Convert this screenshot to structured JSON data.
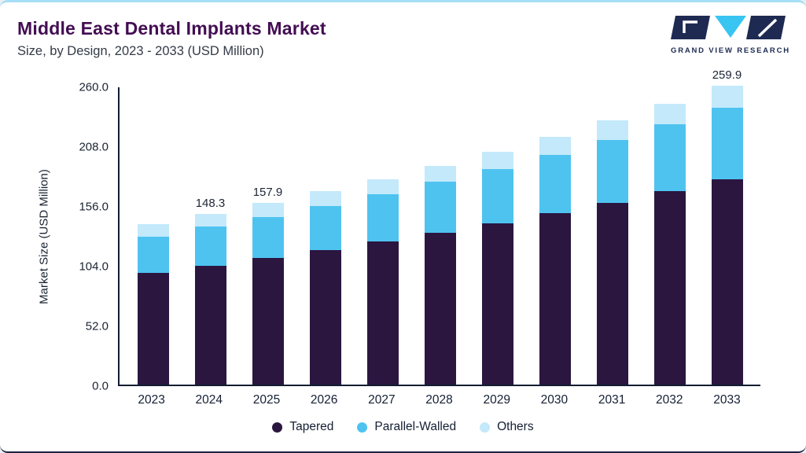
{
  "header": {
    "title": "Middle East Dental Implants Market",
    "subtitle": "Size, by Design, 2023 - 2033 (USD Million)",
    "logo_text": "GRAND VIEW RESEARCH"
  },
  "colors": {
    "accent_top": "#a6def6",
    "bottom_line": "#1c2440",
    "title": "#430d52",
    "axis": "#121d32",
    "logo_navy": "#1e2a52",
    "logo_cyan": "#38c5f1"
  },
  "chart_data": {
    "type": "bar",
    "stacked": true,
    "title": "Middle East Dental Implants Market Size, by Design, 2023 - 2033 (USD Million)",
    "xlabel": "",
    "ylabel": "Market Size (USD Million)",
    "ylim": [
      0,
      260
    ],
    "yticks": [
      0,
      52,
      104,
      156,
      208,
      260
    ],
    "ytick_labels": [
      "0.0",
      "52.0",
      "104.0",
      "156.0",
      "208.0",
      "260.0"
    ],
    "grid": false,
    "legend_position": "bottom",
    "categories": [
      "2023",
      "2024",
      "2025",
      "2026",
      "2027",
      "2028",
      "2029",
      "2030",
      "2031",
      "2032",
      "2033"
    ],
    "series": [
      {
        "name": "Tapered",
        "color": "#2b1640",
        "values": [
          97.5,
          103.5,
          110.0,
          116.9,
          124.2,
          132.0,
          140.3,
          149.1,
          158.4,
          168.3,
          178.8
        ]
      },
      {
        "name": "Parallel-Walled",
        "color": "#4ec3f0",
        "values": [
          31.4,
          33.7,
          36.0,
          38.6,
          41.3,
          44.2,
          47.3,
          50.7,
          54.3,
          58.1,
          62.3
        ]
      },
      {
        "name": "Others",
        "color": "#c3e9fb",
        "values": [
          10.5,
          11.1,
          11.9,
          12.6,
          13.4,
          14.2,
          15.1,
          16.0,
          17.0,
          18.0,
          18.8
        ]
      }
    ],
    "totals": [
      139.4,
      148.3,
      157.9,
      168.1,
      178.9,
      190.4,
      202.7,
      215.8,
      229.7,
      244.4,
      259.9
    ],
    "value_labels": [
      "",
      "148.3",
      "157.9",
      "",
      "",
      "",
      "",
      "",
      "",
      "",
      "259.9"
    ]
  }
}
